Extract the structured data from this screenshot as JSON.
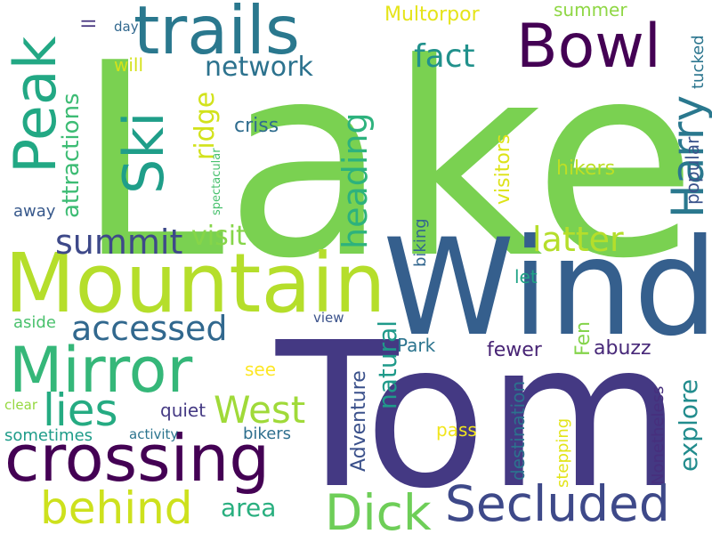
{
  "words": [
    {
      "text": "Lake",
      "color": "#7ad151"
    },
    {
      "text": "Tom",
      "color": "#443983"
    },
    {
      "text": "Wind",
      "color": "#355f8d"
    },
    {
      "text": "Mountain",
      "color": "#b5de2b"
    },
    {
      "text": "crossing",
      "color": "#440154"
    },
    {
      "text": "trails",
      "color": "#2a788e"
    },
    {
      "text": "Mirror",
      "color": "#35b779"
    },
    {
      "text": "Bowl",
      "color": "#440154"
    },
    {
      "text": "Peak",
      "color": "#22a884"
    },
    {
      "text": "Ski",
      "color": "#1f9e89"
    },
    {
      "text": "Secluded",
      "color": "#3e4989"
    },
    {
      "text": "Dick",
      "color": "#6ece58"
    },
    {
      "text": "behind",
      "color": "#cde11d"
    },
    {
      "text": "Harry",
      "color": "#2a788e"
    },
    {
      "text": "lies",
      "color": "#25ab82"
    },
    {
      "text": "West",
      "color": "#a0da39"
    },
    {
      "text": "accessed",
      "color": "#31688e"
    },
    {
      "text": "summit",
      "color": "#3e4989"
    },
    {
      "text": "latter",
      "color": "#b5de2b"
    },
    {
      "text": "heading",
      "color": "#2db27d"
    },
    {
      "text": "fact",
      "color": "#21918c"
    },
    {
      "text": "network",
      "color": "#2c728e"
    },
    {
      "text": "ridge",
      "color": "#d2e21b"
    },
    {
      "text": "visit",
      "color": "#86d549"
    },
    {
      "text": "attractions",
      "color": "#3dbc74"
    },
    {
      "text": "natural",
      "color": "#1f9a8a"
    },
    {
      "text": "explore",
      "color": "#228c8d"
    },
    {
      "text": "area",
      "color": "#29af7f"
    },
    {
      "text": "Adventure",
      "color": "#3b518b"
    },
    {
      "text": "criss",
      "color": "#2f6c8e"
    },
    {
      "text": "Multorpor",
      "color": "#e5e419"
    },
    {
      "text": "summer",
      "color": "#8fd744"
    },
    {
      "text": "visitors",
      "color": "#dde318"
    },
    {
      "text": "popular",
      "color": "#3a538b"
    },
    {
      "text": "hikers",
      "color": "#bddf26"
    },
    {
      "text": "biking",
      "color": "#31668e"
    },
    {
      "text": "Park",
      "color": "#2b748e"
    },
    {
      "text": "fewer",
      "color": "#482475"
    },
    {
      "text": "abuzz",
      "color": "#482979"
    },
    {
      "text": "Fen",
      "color": "#84d44b"
    },
    {
      "text": "let",
      "color": "#20a386"
    },
    {
      "text": "see",
      "color": "#fde725"
    },
    {
      "text": "quiet",
      "color": "#443983"
    },
    {
      "text": "bikers",
      "color": "#2e6f8e"
    },
    {
      "text": "pass",
      "color": "#f1e51d"
    },
    {
      "text": "destination",
      "color": "#2c728e"
    },
    {
      "text": "stepping",
      "color": "#e2e418"
    },
    {
      "text": "Nonetheless",
      "color": "#472f7d"
    },
    {
      "text": "sometimes",
      "color": "#1e9c89"
    },
    {
      "text": "activity",
      "color": "#2b748e"
    },
    {
      "text": "clear",
      "color": "#95d840"
    },
    {
      "text": "aside",
      "color": "#4ac16d"
    },
    {
      "text": "view",
      "color": "#3b528b"
    },
    {
      "text": "away",
      "color": "#38598c"
    },
    {
      "text": "will",
      "color": "#d5e21a"
    },
    {
      "text": "day",
      "color": "#31688e"
    },
    {
      "text": "ll",
      "color": "#46337e"
    },
    {
      "text": "tucked",
      "color": "#2b758e"
    },
    {
      "text": "spectacular",
      "color": "#48c16e"
    }
  ]
}
